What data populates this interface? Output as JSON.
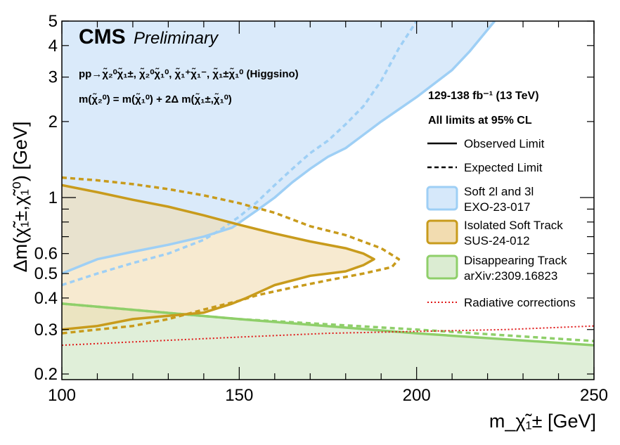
{
  "chart_data": {
    "type": "area",
    "branding": {
      "experiment": "CMS",
      "status": "Preliminary"
    },
    "process_line1": "pp→χ̃₂⁰χ̃₁±,  χ̃₂⁰χ̃₁⁰,  χ̃₁⁺χ̃₁⁻,  χ̃₁±χ̃₁⁰ (Higgsino)",
    "process_line2": "m(χ̃₂⁰) = m(χ̃₁⁰) + 2Δ m(χ̃₁±,χ̃₁⁰)",
    "lumi": "129-138 fb⁻¹ (13 TeV)",
    "cl_note": "All limits at 95% CL",
    "xlabel": "m_χ̃₁± [GeV]",
    "ylabel": "Δm(χ̃₁±,χ̃₁⁰) [GeV]",
    "xlim": [
      100,
      250
    ],
    "ylim": [
      0.19,
      5
    ],
    "yscale": "log",
    "x_ticks": [
      100,
      150,
      200,
      250
    ],
    "x_tick_labels": [
      "100",
      "150",
      "200",
      "250"
    ],
    "y_ticks": [
      0.2,
      0.3,
      0.4,
      0.5,
      0.6,
      1,
      2,
      3,
      4,
      5
    ],
    "y_tick_labels": [
      "0.2",
      "0.3",
      "0.4",
      "0.5",
      "0.6",
      "1",
      "2",
      "3",
      "4",
      "5"
    ],
    "legend": {
      "placement": "right",
      "observed_label": "Observed Limit",
      "expected_label": "Expected Limit",
      "radiative_label": "Radiative corrections"
    },
    "series": [
      {
        "name": "Soft 2l and 3l EXO-23-017",
        "label_line1": "Soft 2l and 3l",
        "label_line2": "EXO-23-017",
        "color": "#9ecff5",
        "fill": "#d6e8fa",
        "observed": {
          "x": [
            100,
            110,
            120,
            130,
            140,
            148,
            155,
            160,
            165,
            170,
            175,
            180,
            190,
            200,
            210,
            215,
            222
          ],
          "y": [
            0.5,
            0.57,
            0.61,
            0.65,
            0.7,
            0.76,
            0.89,
            1.0,
            1.15,
            1.3,
            1.45,
            1.57,
            2.0,
            2.5,
            3.2,
            3.8,
            5.0
          ]
        },
        "expected": {
          "x": [
            100,
            110,
            120,
            130,
            140,
            145,
            150,
            155,
            160,
            165,
            170,
            175,
            180,
            185,
            190,
            195,
            200
          ],
          "y": [
            0.45,
            0.5,
            0.55,
            0.6,
            0.68,
            0.75,
            0.84,
            0.96,
            1.12,
            1.3,
            1.5,
            1.68,
            1.95,
            2.3,
            2.9,
            3.9,
            5.0
          ]
        }
      },
      {
        "name": "Isolated Soft Track SUS-24-012",
        "label_line1": "Isolated Soft Track",
        "label_line2": "SUS-24-012",
        "color": "#c89b1c",
        "fill": "#f2dcb0",
        "observed": {
          "x": [
            100,
            110,
            120,
            130,
            140,
            150,
            160,
            170,
            180,
            185,
            188,
            185,
            180,
            170,
            160,
            152,
            148,
            140,
            130,
            120,
            110,
            100
          ],
          "y": [
            1.12,
            1.05,
            0.98,
            0.92,
            0.85,
            0.78,
            0.72,
            0.67,
            0.63,
            0.6,
            0.57,
            0.54,
            0.51,
            0.49,
            0.45,
            0.4,
            0.38,
            0.35,
            0.34,
            0.33,
            0.31,
            0.3
          ]
        },
        "expected": {
          "x": [
            100,
            110,
            120,
            130,
            140,
            150,
            160,
            170,
            180,
            190,
            195,
            193,
            185,
            175,
            165,
            155,
            150,
            140,
            130,
            120,
            110,
            100
          ],
          "y": [
            1.2,
            1.17,
            1.13,
            1.08,
            1.02,
            0.95,
            0.87,
            0.77,
            0.71,
            0.63,
            0.57,
            0.53,
            0.5,
            0.47,
            0.44,
            0.41,
            0.39,
            0.36,
            0.33,
            0.31,
            0.3,
            0.29
          ]
        }
      },
      {
        "name": "Disappearing Track arXiv:2309.16823",
        "label_line1": "Disappearing Track",
        "label_line2": "arXiv:2309.16823",
        "color": "#8fcf6a",
        "fill": "#dbecd2",
        "observed": {
          "x": [
            100,
            150,
            200,
            250
          ],
          "y": [
            0.38,
            0.33,
            0.29,
            0.26
          ]
        },
        "expected": {
          "x": [
            100,
            150,
            200,
            250
          ],
          "y": [
            0.38,
            0.33,
            0.3,
            0.27
          ]
        }
      },
      {
        "name": "Radiative corrections",
        "color": "#e01818",
        "line": {
          "x": [
            100,
            125,
            150,
            175,
            200,
            225,
            250
          ],
          "y": [
            0.26,
            0.27,
            0.28,
            0.29,
            0.295,
            0.3,
            0.31
          ]
        }
      }
    ]
  }
}
